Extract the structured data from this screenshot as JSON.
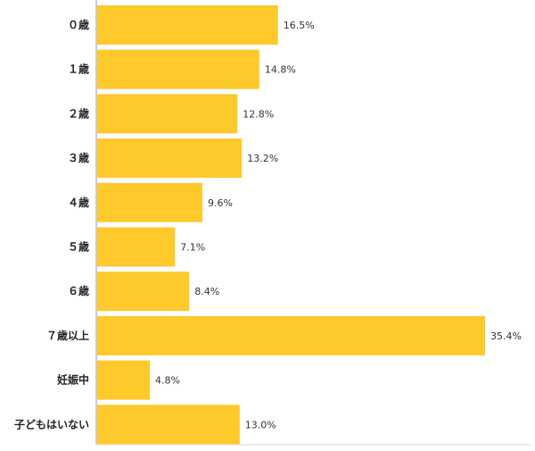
{
  "chart_data": {
    "type": "bar",
    "orientation": "horizontal",
    "categories": [
      "０歳",
      "１歳",
      "２歳",
      "３歳",
      "４歳",
      "５歳",
      "６歳",
      "７歳以上",
      "妊娠中",
      "子どもはいない"
    ],
    "values": [
      16.5,
      14.8,
      12.8,
      13.2,
      9.6,
      7.1,
      8.4,
      35.4,
      4.8,
      13.0
    ],
    "value_labels": [
      "16.5%",
      "14.8%",
      "12.8%",
      "13.2%",
      "9.6%",
      "7.1%",
      "8.4%",
      "35.4%",
      "4.8%",
      "13.0%"
    ],
    "xlim": [
      0,
      40
    ],
    "grid": false,
    "colors": {
      "bar": "#FDC92B",
      "axis": "#999999",
      "text": "#222222"
    }
  }
}
